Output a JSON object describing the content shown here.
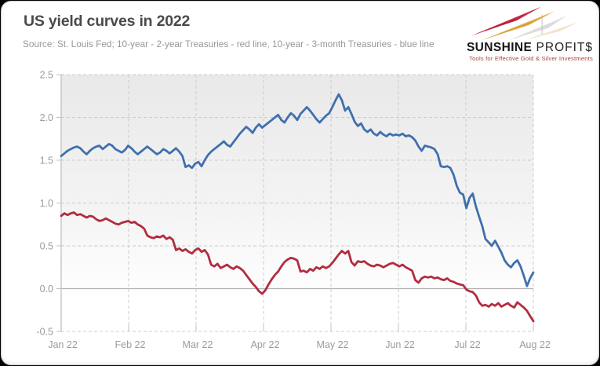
{
  "header": {
    "title": "US yield curves in 2022",
    "subtitle": "Source: St. Louis Fed; 10-year - 2-year Treasuries - red line, 10-year - 3-month Treasuries - blue line"
  },
  "logo": {
    "brand_bold": "SUNSHINE",
    "brand_light": "PROFIT$",
    "tagline": "Tools for Effective Gold & Silver Investments",
    "colors": {
      "spike_red": "#b51f38",
      "spike_gold": "#d79f35",
      "shadow": "#c0c0c0",
      "tagline_text": "#a3493f"
    }
  },
  "chart_data": {
    "type": "line",
    "title": "US yield curves in 2022",
    "xlabel": "",
    "ylabel": "",
    "grid": "dashed gray horizontal and vertical gridlines; zero line solid; plot background fades gray to white",
    "legend": "described in subtitle text (red/blue line)",
    "axes": {
      "ylim": [
        -0.5,
        2.5
      ],
      "y_ticks": [
        {
          "v": 2.5,
          "label": "2.5"
        },
        {
          "v": 2.0,
          "label": "2.0"
        },
        {
          "v": 1.5,
          "label": "1.5"
        },
        {
          "v": 1.0,
          "label": "1.0"
        },
        {
          "v": 0.5,
          "label": "0.5"
        },
        {
          "v": 0.0,
          "label": "0.0"
        },
        {
          "v": -0.5,
          "label": "-0.5"
        }
      ],
      "x_tick_labels": [
        "Jan 22",
        "Feb 22",
        "Mar 22",
        "Apr 22",
        "May 22",
        "Jun 22",
        "Jul 22",
        "Aug 22"
      ]
    },
    "series": [
      {
        "id": "blue",
        "name": "10-year - 3-month Treasuries",
        "color": "#3f70ad",
        "values": [
          1.55,
          1.58,
          1.61,
          1.63,
          1.65,
          1.66,
          1.64,
          1.6,
          1.57,
          1.61,
          1.64,
          1.66,
          1.67,
          1.63,
          1.66,
          1.69,
          1.67,
          1.63,
          1.61,
          1.59,
          1.62,
          1.67,
          1.64,
          1.6,
          1.57,
          1.6,
          1.63,
          1.66,
          1.63,
          1.6,
          1.57,
          1.59,
          1.63,
          1.61,
          1.58,
          1.61,
          1.64,
          1.6,
          1.55,
          1.42,
          1.44,
          1.41,
          1.46,
          1.48,
          1.43,
          1.5,
          1.56,
          1.6,
          1.63,
          1.66,
          1.69,
          1.72,
          1.68,
          1.66,
          1.71,
          1.76,
          1.81,
          1.85,
          1.89,
          1.86,
          1.82,
          1.88,
          1.92,
          1.88,
          1.91,
          1.94,
          1.97,
          2.0,
          2.03,
          1.97,
          1.94,
          2.0,
          2.05,
          2.02,
          1.97,
          2.04,
          2.08,
          2.12,
          2.08,
          2.03,
          1.98,
          1.94,
          1.98,
          2.02,
          2.05,
          2.12,
          2.2,
          2.27,
          2.2,
          2.08,
          2.12,
          2.04,
          1.95,
          1.9,
          1.93,
          1.86,
          1.83,
          1.86,
          1.81,
          1.79,
          1.83,
          1.8,
          1.78,
          1.81,
          1.79,
          1.8,
          1.79,
          1.81,
          1.78,
          1.79,
          1.77,
          1.73,
          1.66,
          1.61,
          1.67,
          1.66,
          1.65,
          1.63,
          1.57,
          1.43,
          1.42,
          1.43,
          1.41,
          1.33,
          1.2,
          1.12,
          1.1,
          0.94,
          1.06,
          1.11,
          0.96,
          0.84,
          0.73,
          0.58,
          0.54,
          0.5,
          0.56,
          0.49,
          0.42,
          0.33,
          0.28,
          0.25,
          0.3,
          0.33,
          0.26,
          0.15,
          0.03,
          0.12,
          0.19
        ]
      },
      {
        "id": "red",
        "name": "10-year - 2-year Treasuries",
        "color": "#b22c3f",
        "values": [
          0.85,
          0.88,
          0.86,
          0.88,
          0.89,
          0.86,
          0.87,
          0.85,
          0.83,
          0.85,
          0.84,
          0.81,
          0.79,
          0.8,
          0.82,
          0.8,
          0.78,
          0.76,
          0.75,
          0.77,
          0.78,
          0.79,
          0.77,
          0.78,
          0.75,
          0.73,
          0.7,
          0.62,
          0.6,
          0.59,
          0.61,
          0.6,
          0.62,
          0.58,
          0.6,
          0.57,
          0.45,
          0.47,
          0.44,
          0.46,
          0.43,
          0.41,
          0.45,
          0.47,
          0.43,
          0.45,
          0.4,
          0.28,
          0.26,
          0.29,
          0.24,
          0.26,
          0.28,
          0.25,
          0.23,
          0.26,
          0.24,
          0.21,
          0.16,
          0.11,
          0.06,
          0.02,
          -0.03,
          -0.06,
          -0.02,
          0.05,
          0.11,
          0.16,
          0.2,
          0.26,
          0.31,
          0.34,
          0.36,
          0.35,
          0.33,
          0.2,
          0.21,
          0.19,
          0.23,
          0.21,
          0.25,
          0.23,
          0.26,
          0.24,
          0.26,
          0.3,
          0.35,
          0.4,
          0.44,
          0.41,
          0.44,
          0.31,
          0.27,
          0.32,
          0.31,
          0.32,
          0.29,
          0.27,
          0.26,
          0.28,
          0.27,
          0.25,
          0.27,
          0.29,
          0.3,
          0.28,
          0.26,
          0.28,
          0.25,
          0.23,
          0.21,
          0.1,
          0.07,
          0.12,
          0.14,
          0.13,
          0.14,
          0.12,
          0.13,
          0.11,
          0.1,
          0.12,
          0.09,
          0.08,
          0.06,
          0.05,
          0.04,
          -0.01,
          -0.03,
          -0.04,
          -0.08,
          -0.16,
          -0.2,
          -0.19,
          -0.21,
          -0.18,
          -0.2,
          -0.17,
          -0.21,
          -0.19,
          -0.17,
          -0.2,
          -0.22,
          -0.16,
          -0.19,
          -0.22,
          -0.26,
          -0.32,
          -0.38
        ]
      }
    ],
    "colors": {
      "grid_dashed": "#cccccc",
      "zero_line": "#b2b2b2",
      "axis_line": "#c0c0c0",
      "tick_label": "#9b9b9b",
      "plot_bg_top": "#e9e9e9",
      "plot_bg_bottom": "#ffffff"
    }
  }
}
